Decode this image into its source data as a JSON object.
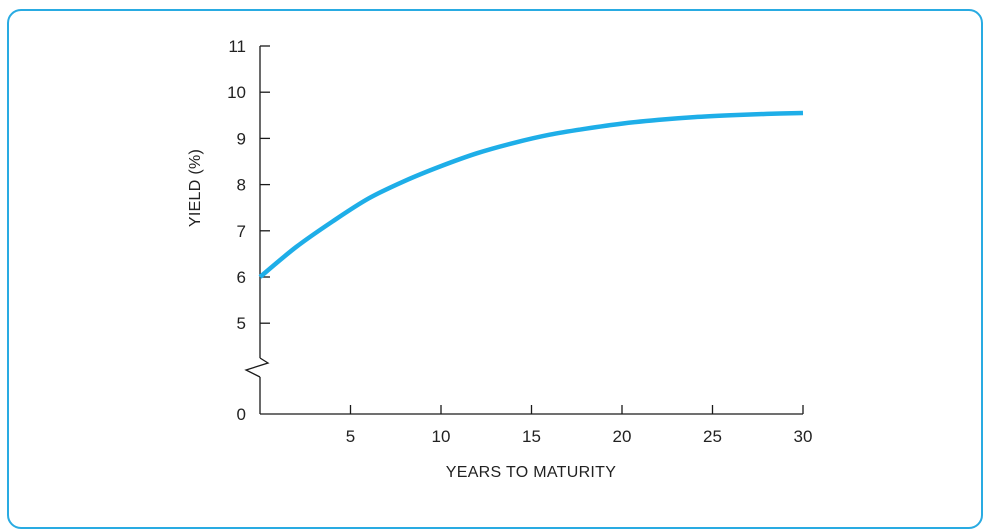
{
  "chart_data": {
    "type": "line",
    "title": "",
    "xlabel": "YEARS TO MATURITY",
    "ylabel": "YIELD (%)",
    "xlim": [
      0,
      30
    ],
    "ylim": [
      4,
      11
    ],
    "axis_break": "y between 0 and 5",
    "x_ticks": [
      5,
      10,
      15,
      20,
      25,
      30
    ],
    "y_ticks": [
      0,
      5,
      6,
      7,
      8,
      9,
      10,
      11
    ],
    "grid": false,
    "series": [
      {
        "color": "#1eaee8",
        "x": [
          0,
          2,
          4,
          6,
          8,
          10,
          12,
          14,
          16,
          18,
          20,
          22,
          24,
          26,
          28,
          30
        ],
        "y": [
          6.0,
          6.65,
          7.2,
          7.7,
          8.08,
          8.4,
          8.68,
          8.9,
          9.08,
          9.21,
          9.32,
          9.4,
          9.46,
          9.5,
          9.53,
          9.55
        ]
      }
    ]
  }
}
